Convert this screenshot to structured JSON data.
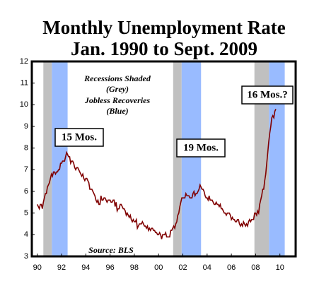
{
  "chart_data": {
    "type": "line",
    "title": [
      "Monthly Unemployment Rate",
      "Jan. 1990 to Sept. 2009"
    ],
    "annotations": [
      "Recessions Shaded",
      "(Grey)",
      "Jobless Recoveries",
      "(Blue)"
    ],
    "boxes": [
      "15 Mos.",
      "19 Mos.",
      "16 Mos.?"
    ],
    "source": "Source: BLS",
    "shaded": [
      {
        "start": 1990.5,
        "end": 1991.2,
        "color": "#c0c0c0"
      },
      {
        "start": 1991.2,
        "end": 1992.5,
        "color": "#99bbff"
      },
      {
        "start": 2001.2,
        "end": 2001.9,
        "color": "#c0c0c0"
      },
      {
        "start": 2001.9,
        "end": 2003.5,
        "color": "#99bbff"
      },
      {
        "start": 2007.9,
        "end": 2009.1,
        "color": "#c0c0c0"
      },
      {
        "start": 2009.1,
        "end": 2010.4,
        "color": "#99bbff"
      }
    ],
    "xlim": [
      1989.55,
      2011.3
    ],
    "ylim": [
      3,
      12
    ],
    "xticks": [
      {
        "value": 1990,
        "label": "90"
      },
      {
        "value": 1992,
        "label": "92"
      },
      {
        "value": 1994,
        "label": "94"
      },
      {
        "value": 1996,
        "label": "96"
      },
      {
        "value": 1998,
        "label": "98"
      },
      {
        "value": 2000,
        "label": "00"
      },
      {
        "value": 2002,
        "label": "02"
      },
      {
        "value": 2004,
        "label": "04"
      },
      {
        "value": 2006,
        "label": "06"
      },
      {
        "value": 2008,
        "label": "08"
      },
      {
        "value": 2010,
        "label": "10"
      }
    ],
    "yticks": [
      3,
      4,
      5,
      6,
      7,
      8,
      9,
      10,
      11,
      12
    ],
    "series": [
      {
        "color": "#800000",
        "x": [
          "1990-01",
          "1990-02",
          "1990-03",
          "1990-04",
          "1990-05",
          "1990-06",
          "1990-07",
          "1990-08",
          "1990-09",
          "1990-10",
          "1990-11",
          "1990-12",
          "1991-01",
          "1991-02",
          "1991-03",
          "1991-04",
          "1991-05",
          "1991-06",
          "1991-07",
          "1991-08",
          "1991-09",
          "1991-10",
          "1991-11",
          "1991-12",
          "1992-01",
          "1992-02",
          "1992-03",
          "1992-04",
          "1992-05",
          "1992-06",
          "1992-07",
          "1992-08",
          "1992-09",
          "1992-10",
          "1992-11",
          "1992-12",
          "1993-01",
          "1993-02",
          "1993-03",
          "1993-04",
          "1993-05",
          "1993-06",
          "1993-07",
          "1993-08",
          "1993-09",
          "1993-10",
          "1993-11",
          "1993-12",
          "1994-01",
          "1994-02",
          "1994-03",
          "1994-04",
          "1994-05",
          "1994-06",
          "1994-07",
          "1994-08",
          "1994-09",
          "1994-10",
          "1994-11",
          "1994-12",
          "1995-01",
          "1995-02",
          "1995-03",
          "1995-04",
          "1995-05",
          "1995-06",
          "1995-07",
          "1995-08",
          "1995-09",
          "1995-10",
          "1995-11",
          "1995-12",
          "1996-01",
          "1996-02",
          "1996-03",
          "1996-04",
          "1996-05",
          "1996-06",
          "1996-07",
          "1996-08",
          "1996-09",
          "1996-10",
          "1996-11",
          "1996-12",
          "1997-01",
          "1997-02",
          "1997-03",
          "1997-04",
          "1997-05",
          "1997-06",
          "1997-07",
          "1997-08",
          "1997-09",
          "1997-10",
          "1997-11",
          "1997-12",
          "1998-01",
          "1998-02",
          "1998-03",
          "1998-04",
          "1998-05",
          "1998-06",
          "1998-07",
          "1998-08",
          "1998-09",
          "1998-10",
          "1998-11",
          "1998-12",
          "1999-01",
          "1999-02",
          "1999-03",
          "1999-04",
          "1999-05",
          "1999-06",
          "1999-07",
          "1999-08",
          "1999-09",
          "1999-10",
          "1999-11",
          "1999-12",
          "2000-01",
          "2000-02",
          "2000-03",
          "2000-04",
          "2000-05",
          "2000-06",
          "2000-07",
          "2000-08",
          "2000-09",
          "2000-10",
          "2000-11",
          "2000-12",
          "2001-01",
          "2001-02",
          "2001-03",
          "2001-04",
          "2001-05",
          "2001-06",
          "2001-07",
          "2001-08",
          "2001-09",
          "2001-10",
          "2001-11",
          "2001-12",
          "2002-01",
          "2002-02",
          "2002-03",
          "2002-04",
          "2002-05",
          "2002-06",
          "2002-07",
          "2002-08",
          "2002-09",
          "2002-10",
          "2002-11",
          "2002-12",
          "2003-01",
          "2003-02",
          "2003-03",
          "2003-04",
          "2003-05",
          "2003-06",
          "2003-07",
          "2003-08",
          "2003-09",
          "2003-10",
          "2003-11",
          "2003-12",
          "2004-01",
          "2004-02",
          "2004-03",
          "2004-04",
          "2004-05",
          "2004-06",
          "2004-07",
          "2004-08",
          "2004-09",
          "2004-10",
          "2004-11",
          "2004-12",
          "2005-01",
          "2005-02",
          "2005-03",
          "2005-04",
          "2005-05",
          "2005-06",
          "2005-07",
          "2005-08",
          "2005-09",
          "2005-10",
          "2005-11",
          "2005-12",
          "2006-01",
          "2006-02",
          "2006-03",
          "2006-04",
          "2006-05",
          "2006-06",
          "2006-07",
          "2006-08",
          "2006-09",
          "2006-10",
          "2006-11",
          "2006-12",
          "2007-01",
          "2007-02",
          "2007-03",
          "2007-04",
          "2007-05",
          "2007-06",
          "2007-07",
          "2007-08",
          "2007-09",
          "2007-10",
          "2007-11",
          "2007-12",
          "2008-01",
          "2008-02",
          "2008-03",
          "2008-04",
          "2008-05",
          "2008-06",
          "2008-07",
          "2008-08",
          "2008-09",
          "2008-10",
          "2008-11",
          "2008-12",
          "2009-01",
          "2009-02",
          "2009-03",
          "2009-04",
          "2009-05",
          "2009-06",
          "2009-07",
          "2009-08",
          "2009-09"
        ],
        "values": [
          5.4,
          5.3,
          5.2,
          5.4,
          5.4,
          5.2,
          5.5,
          5.7,
          5.9,
          5.9,
          6.2,
          6.3,
          6.4,
          6.6,
          6.8,
          6.7,
          6.9,
          6.9,
          6.8,
          6.9,
          6.9,
          7.0,
          7.0,
          7.3,
          7.3,
          7.4,
          7.4,
          7.4,
          7.6,
          7.8,
          7.7,
          7.6,
          7.6,
          7.3,
          7.4,
          7.4,
          7.3,
          7.1,
          7.0,
          7.1,
          7.1,
          7.0,
          6.9,
          6.8,
          6.7,
          6.8,
          6.6,
          6.5,
          6.6,
          6.6,
          6.5,
          6.4,
          6.1,
          6.1,
          6.1,
          6.0,
          5.9,
          5.8,
          5.6,
          5.5,
          5.6,
          5.4,
          5.4,
          5.8,
          5.6,
          5.6,
          5.7,
          5.7,
          5.6,
          5.5,
          5.6,
          5.6,
          5.6,
          5.5,
          5.5,
          5.6,
          5.6,
          5.3,
          5.5,
          5.1,
          5.2,
          5.2,
          5.4,
          5.4,
          5.3,
          5.2,
          5.2,
          5.1,
          4.9,
          5.0,
          4.9,
          4.8,
          4.9,
          4.7,
          4.6,
          4.7,
          4.6,
          4.6,
          4.7,
          4.3,
          4.4,
          4.5,
          4.5,
          4.5,
          4.6,
          4.5,
          4.4,
          4.4,
          4.3,
          4.4,
          4.2,
          4.3,
          4.2,
          4.3,
          4.3,
          4.2,
          4.2,
          4.1,
          4.1,
          4.0,
          4.0,
          4.1,
          4.0,
          3.8,
          4.0,
          4.0,
          4.0,
          4.1,
          3.9,
          3.9,
          3.9,
          3.9,
          4.2,
          4.2,
          4.3,
          4.4,
          4.3,
          4.5,
          4.6,
          4.9,
          5.0,
          5.3,
          5.5,
          5.7,
          5.7,
          5.7,
          5.7,
          5.9,
          5.8,
          5.8,
          5.8,
          5.7,
          5.7,
          5.7,
          5.9,
          6.0,
          5.8,
          5.9,
          5.9,
          6.0,
          6.1,
          6.3,
          6.2,
          6.1,
          6.1,
          6.0,
          5.8,
          5.7,
          5.7,
          5.6,
          5.8,
          5.6,
          5.6,
          5.6,
          5.5,
          5.4,
          5.4,
          5.5,
          5.4,
          5.4,
          5.3,
          5.4,
          5.2,
          5.2,
          5.1,
          5.0,
          5.0,
          4.9,
          5.0,
          5.0,
          5.0,
          4.9,
          4.7,
          4.8,
          4.7,
          4.7,
          4.6,
          4.6,
          4.7,
          4.7,
          4.5,
          4.4,
          4.5,
          4.4,
          4.6,
          4.5,
          4.4,
          4.5,
          4.4,
          4.6,
          4.7,
          4.6,
          4.7,
          4.7,
          4.7,
          5.0,
          5.0,
          4.9,
          5.1,
          5.0,
          5.4,
          5.6,
          5.8,
          6.1,
          6.1,
          6.5,
          6.8,
          7.3,
          7.8,
          8.3,
          8.7,
          9.0,
          9.4,
          9.5,
          9.4,
          9.7,
          9.8
        ]
      }
    ]
  }
}
